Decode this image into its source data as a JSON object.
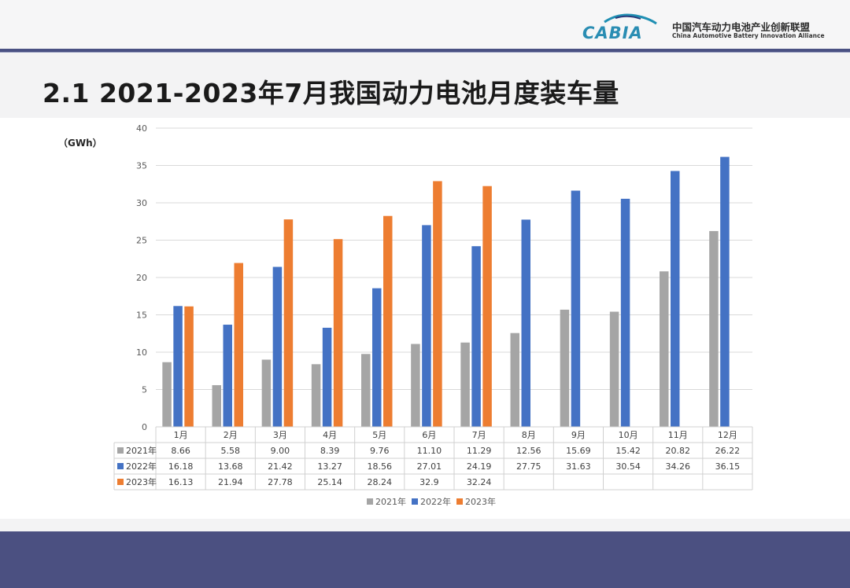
{
  "header": {
    "logo_text": "CABIA",
    "org_name_cn": "中国汽车动力电池产业创新联盟",
    "org_name_en": "China Automotive Battery Innovation Alliance"
  },
  "slide": {
    "title": "2.1 2021-2023年7月我国动力电池月度装车量"
  },
  "colors": {
    "s2021": "#a5a5a5",
    "s2022": "#4472c4",
    "s2023": "#ed7d31",
    "header_bar": "#4a5183",
    "footer_bar": "#4b5081"
  },
  "chart_data": {
    "type": "bar",
    "ylabel": "（GWh）",
    "ylim": [
      0,
      40
    ],
    "yticks": [
      "0",
      "5",
      "10",
      "15",
      "20",
      "25",
      "30",
      "35",
      "40"
    ],
    "grid": true,
    "legend_position": "bottom",
    "categories": [
      "1月",
      "2月",
      "3月",
      "4月",
      "5月",
      "6月",
      "7月",
      "8月",
      "9月",
      "10月",
      "11月",
      "12月"
    ],
    "series": [
      {
        "name": "2021年",
        "values": [
          8.66,
          5.58,
          9.0,
          8.39,
          9.76,
          11.1,
          11.29,
          12.56,
          15.69,
          15.42,
          20.82,
          26.22
        ],
        "labels": [
          "8.66",
          "5.58",
          "9.00",
          "8.39",
          "9.76",
          "11.10",
          "11.29",
          "12.56",
          "15.69",
          "15.42",
          "20.82",
          "26.22"
        ]
      },
      {
        "name": "2022年",
        "values": [
          16.18,
          13.68,
          21.42,
          13.27,
          18.56,
          27.01,
          24.19,
          27.75,
          31.63,
          30.54,
          34.26,
          36.15
        ],
        "labels": [
          "16.18",
          "13.68",
          "21.42",
          "13.27",
          "18.56",
          "27.01",
          "24.19",
          "27.75",
          "31.63",
          "30.54",
          "34.26",
          "36.15"
        ]
      },
      {
        "name": "2023年",
        "values": [
          16.13,
          21.94,
          27.78,
          25.14,
          28.24,
          32.9,
          32.24,
          null,
          null,
          null,
          null,
          null
        ],
        "labels": [
          "16.13",
          "21.94",
          "27.78",
          "25.14",
          "28.24",
          "32.9",
          "32.24",
          "",
          "",
          "",
          "",
          ""
        ]
      }
    ]
  }
}
